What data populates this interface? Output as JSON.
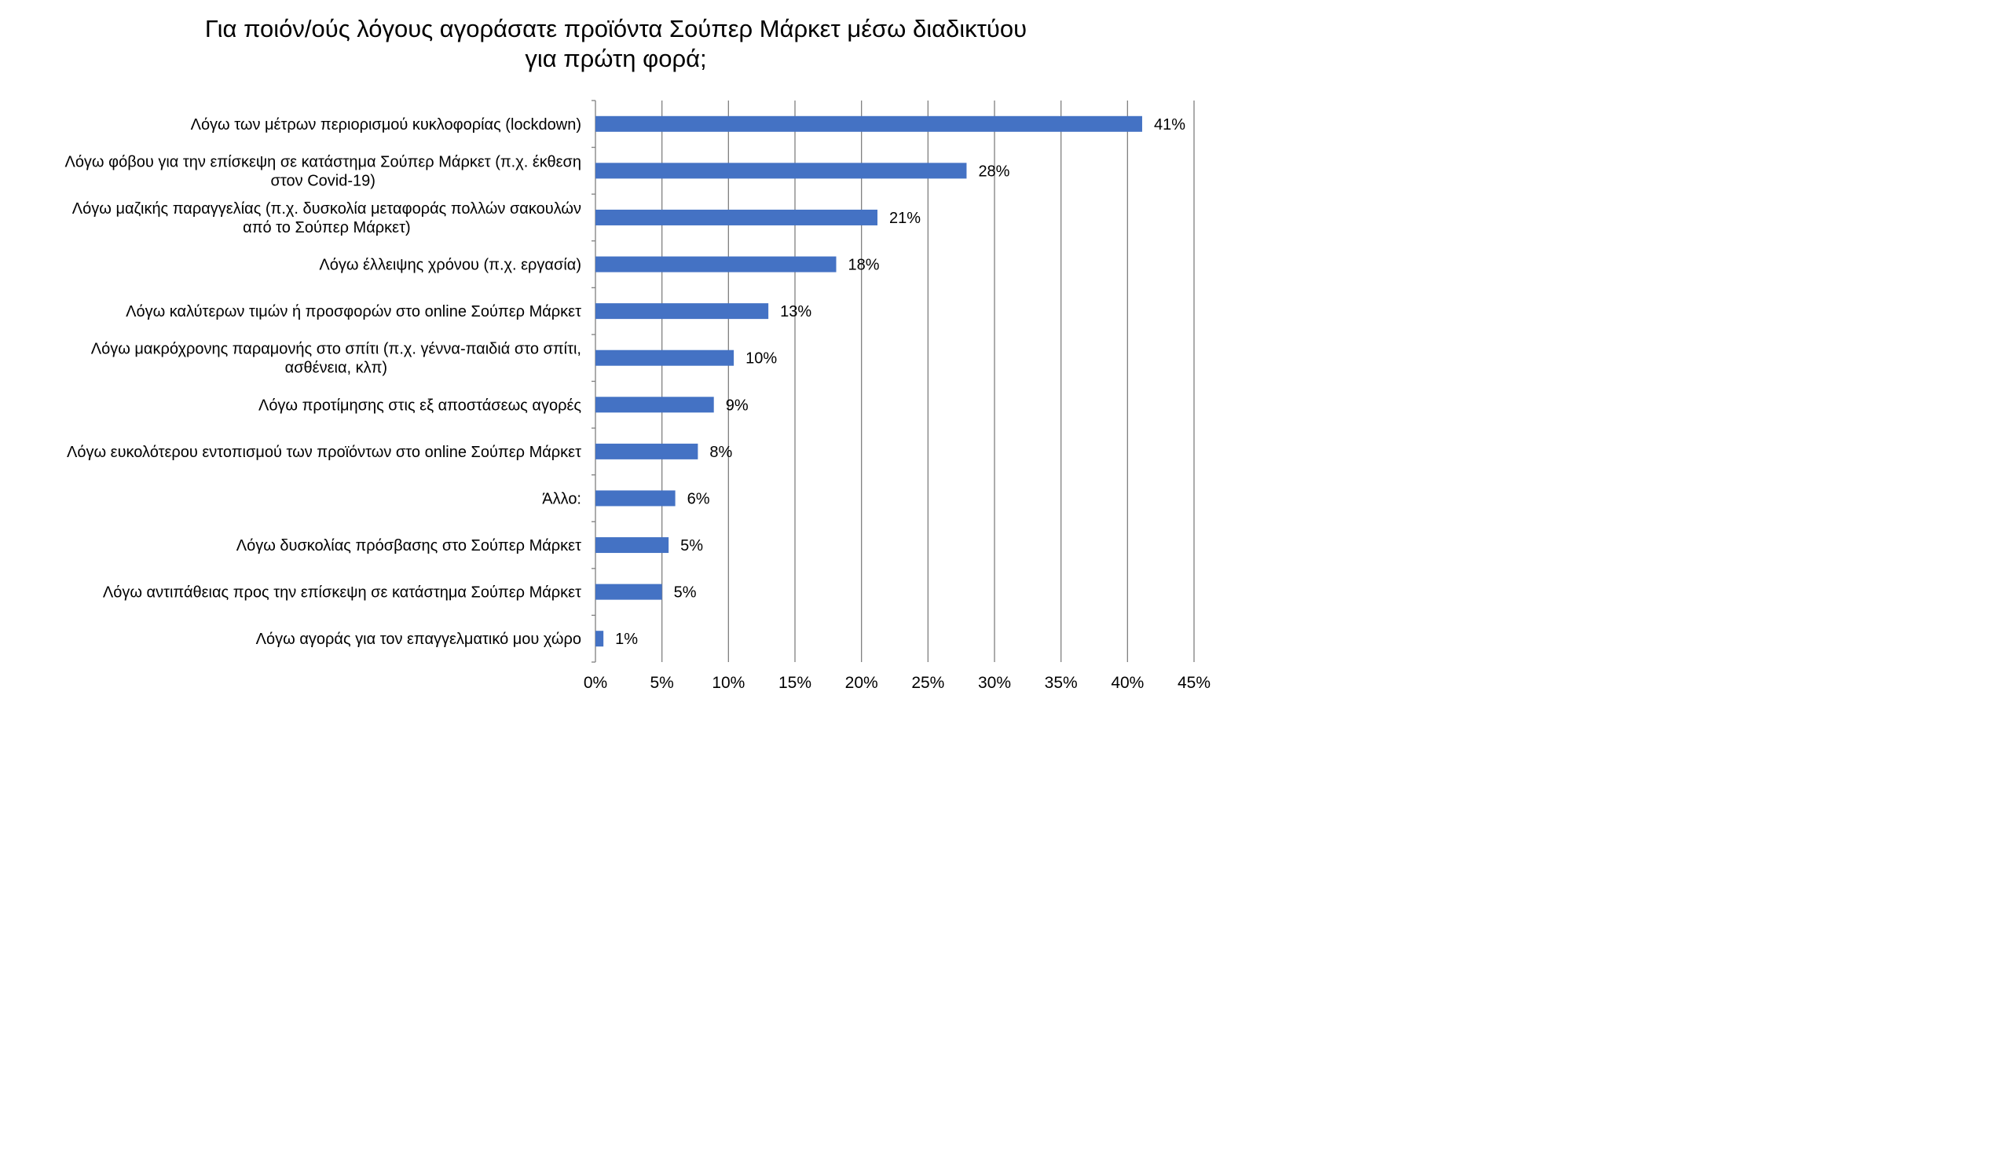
{
  "chart_data": {
    "type": "bar",
    "orientation": "horizontal",
    "title": [
      "Για ποιόν/ούς λόγους αγοράσατε προϊόντα Σούπερ Μάρκετ μέσω διαδικτύου",
      "για πρώτη φορά;"
    ],
    "categories": [
      [
        "Λόγω των μέτρων περιορισμού κυκλοφορίας (lockdown)"
      ],
      [
        "Λόγω φόβου για την επίσκεψη σε κατάστημα Σούπερ Μάρκετ (π.χ. έκθεση",
        "στον Covid-19)"
      ],
      [
        "Λόγω μαζικής παραγγελίας (π.χ. δυσκολία μεταφοράς πολλών σακουλών",
        "από το Σούπερ Μάρκετ)"
      ],
      [
        "Λόγω έλλειψης χρόνου (π.χ. εργασία)"
      ],
      [
        "Λόγω καλύτερων τιμών ή προσφορών στο online Σούπερ Μάρκετ"
      ],
      [
        "Λόγω μακρόχρονης παραμονής στο σπίτι (π.χ. γέννα-παιδιά στο σπίτι,",
        "ασθένεια, κλπ)"
      ],
      [
        "Λόγω προτίμησης στις εξ αποστάσεως αγορές"
      ],
      [
        "Λόγω ευκολότερου εντοπισμού των προϊόντων στο online Σούπερ Μάρκετ"
      ],
      [
        "Άλλο:"
      ],
      [
        "Λόγω δυσκολίας πρόσβασης στο Σούπερ Μάρκετ"
      ],
      [
        "Λόγω αντιπάθειας προς την επίσκεψη σε κατάστημα Σούπερ Μάρκετ"
      ],
      [
        "Λόγω αγοράς για τον επαγγελματικό μου χώρο"
      ]
    ],
    "values": [
      41.1,
      27.9,
      21.2,
      18.1,
      13.0,
      10.4,
      8.9,
      7.7,
      6.0,
      5.5,
      5.0,
      0.6
    ],
    "data_labels": [
      "41%",
      "28%",
      "21%",
      "18%",
      "13%",
      "10%",
      "9%",
      "8%",
      "6%",
      "5%",
      "5%",
      "1%"
    ],
    "xlim": [
      0,
      45
    ],
    "xticks": [
      "0%",
      "5%",
      "10%",
      "15%",
      "20%",
      "25%",
      "30%",
      "35%",
      "40%",
      "45%"
    ],
    "xtick_values": [
      0,
      5,
      10,
      15,
      20,
      25,
      30,
      35,
      40,
      45
    ],
    "grid": "vertical",
    "legend": "none",
    "bar_color": "#4472C4",
    "grid_color": "#808080"
  }
}
